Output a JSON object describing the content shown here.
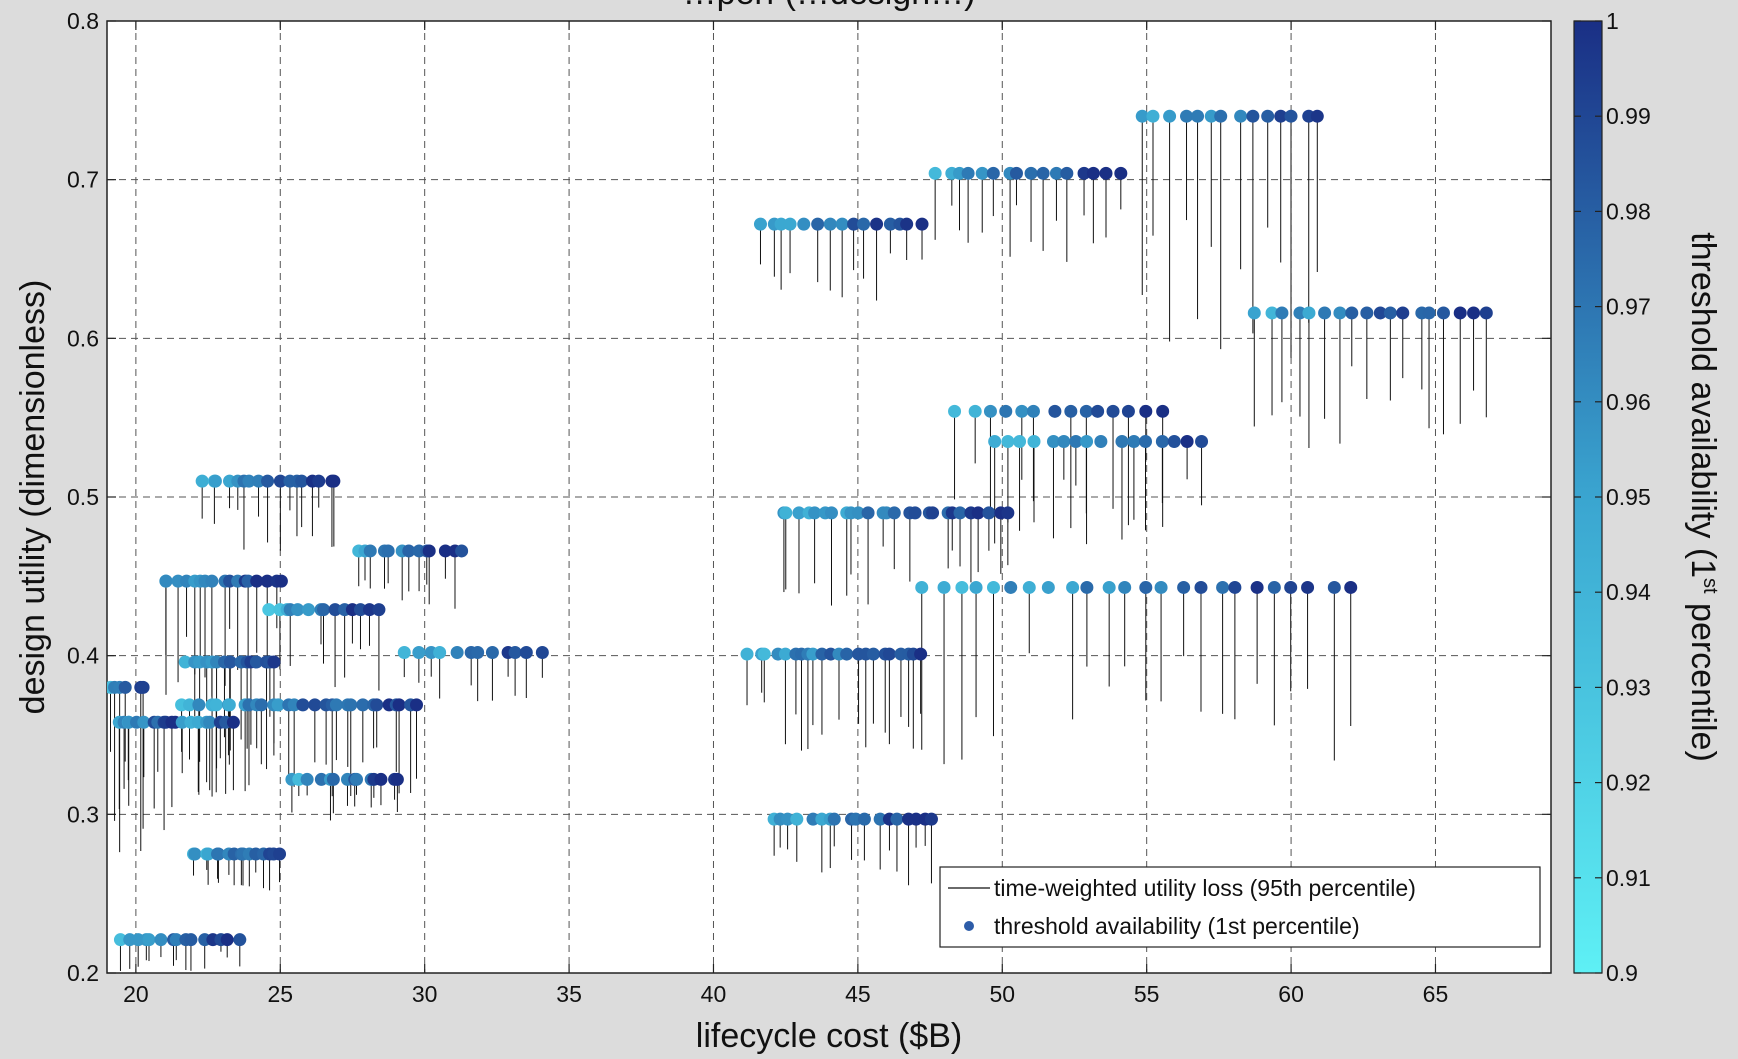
{
  "chart_data": {
    "type": "scatter",
    "title": "…perf (…design…)",
    "xlabel": "lifecycle cost ($B)",
    "ylabel": "design utility (dimensionless)",
    "colorbar_label": "threshold availability (1st percentile)",
    "colorbar_label_parts": {
      "before": "threshold availability (1",
      "sup": "st",
      "after": " percentile)"
    },
    "xlim": [
      19,
      69
    ],
    "ylim": [
      0.2,
      0.8
    ],
    "clim": [
      0.9,
      1.0
    ],
    "xticks": [
      20,
      25,
      30,
      35,
      40,
      45,
      50,
      55,
      60,
      65
    ],
    "yticks": [
      0.2,
      0.3,
      0.4,
      0.5,
      0.6,
      0.7,
      0.8
    ],
    "cticks": [
      0.9,
      0.91,
      0.92,
      0.93,
      0.94,
      0.95,
      0.96,
      0.97,
      0.98,
      0.99,
      1
    ],
    "grid": true,
    "legend_position": "bottom-right",
    "legend": {
      "line_entry": "time-weighted utility loss (95th percentile)",
      "marker_entry": "threshold availability (1st percentile)"
    },
    "colormap": {
      "low": "#5ef0f5",
      "mid": "#3aa5d0",
      "high": "#1a2f85"
    },
    "groups": [
      {
        "utility": 0.74,
        "x_start": 54.8,
        "x_end": 61.0,
        "n": 14,
        "min_utility": 0.585,
        "min_availability": 0.935
      },
      {
        "utility": 0.704,
        "x_start": 47.7,
        "x_end": 54.0,
        "n": 16,
        "min_utility": 0.648,
        "min_availability": 0.94
      },
      {
        "utility": 0.672,
        "x_start": 41.6,
        "x_end": 47.2,
        "n": 15,
        "min_utility": 0.62,
        "min_availability": 0.935
      },
      {
        "utility": 0.616,
        "x_start": 58.8,
        "x_end": 66.8,
        "n": 18,
        "min_utility": 0.527,
        "min_availability": 0.94
      },
      {
        "utility": 0.554,
        "x_start": 48.4,
        "x_end": 55.6,
        "n": 14,
        "min_utility": 0.47,
        "min_availability": 0.935
      },
      {
        "utility": 0.535,
        "x_start": 49.8,
        "x_end": 56.8,
        "n": 16,
        "min_utility": 0.47,
        "min_availability": 0.93
      },
      {
        "utility": 0.51,
        "x_start": 22.3,
        "x_end": 27.0,
        "n": 17,
        "min_utility": 0.465,
        "min_availability": 0.935
      },
      {
        "utility": 0.49,
        "x_start": 42.3,
        "x_end": 50.2,
        "n": 26,
        "min_utility": 0.43,
        "min_availability": 0.935
      },
      {
        "utility": 0.466,
        "x_start": 27.6,
        "x_end": 31.2,
        "n": 13,
        "min_utility": 0.425,
        "min_availability": 0.935
      },
      {
        "utility": 0.447,
        "x_start": 20.9,
        "x_end": 25.0,
        "n": 17,
        "min_utility": 0.37,
        "min_availability": 0.935
      },
      {
        "utility": 0.443,
        "x_start": 47.2,
        "x_end": 62.0,
        "n": 24,
        "min_utility": 0.325,
        "min_availability": 0.93
      },
      {
        "utility": 0.429,
        "x_start": 24.6,
        "x_end": 28.3,
        "n": 14,
        "min_utility": 0.375,
        "min_availability": 0.93
      },
      {
        "utility": 0.402,
        "x_start": 29.4,
        "x_end": 34.0,
        "n": 12,
        "min_utility": 0.37,
        "min_availability": 0.93
      },
      {
        "utility": 0.401,
        "x_start": 41.3,
        "x_end": 47.3,
        "n": 22,
        "min_utility": 0.34,
        "min_availability": 0.935
      },
      {
        "utility": 0.396,
        "x_start": 21.8,
        "x_end": 24.8,
        "n": 16,
        "min_utility": 0.325,
        "min_availability": 0.935
      },
      {
        "utility": 0.38,
        "x_start": 19.0,
        "x_end": 20.3,
        "n": 6,
        "min_utility": 0.27,
        "min_availability": 0.935
      },
      {
        "utility": 0.369,
        "x_start": 21.7,
        "x_end": 29.8,
        "n": 30,
        "min_utility": 0.31,
        "min_availability": 0.935
      },
      {
        "utility": 0.358,
        "x_start": 19.3,
        "x_end": 21.5,
        "n": 12,
        "min_utility": 0.28,
        "min_availability": 0.935
      },
      {
        "utility": 0.358,
        "x_start": 21.7,
        "x_end": 23.3,
        "n": 8,
        "min_utility": 0.31,
        "min_availability": 0.935
      },
      {
        "utility": 0.322,
        "x_start": 25.5,
        "x_end": 29.2,
        "n": 14,
        "min_utility": 0.295,
        "min_availability": 0.935
      },
      {
        "utility": 0.297,
        "x_start": 42.0,
        "x_end": 47.6,
        "n": 18,
        "min_utility": 0.255,
        "min_availability": 0.935
      },
      {
        "utility": 0.275,
        "x_start": 22.0,
        "x_end": 24.9,
        "n": 16,
        "min_utility": 0.252,
        "min_availability": 0.935
      },
      {
        "utility": 0.221,
        "x_start": 19.4,
        "x_end": 23.5,
        "n": 15,
        "min_utility": 0.2,
        "min_availability": 0.935
      }
    ]
  }
}
